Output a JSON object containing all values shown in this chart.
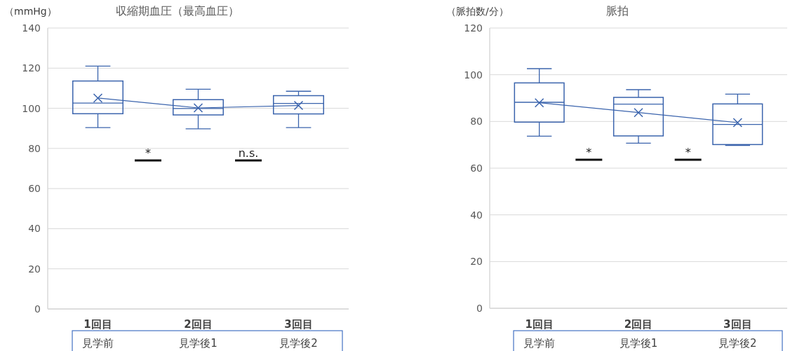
{
  "chart_data": [
    {
      "type": "box",
      "title": "収縮期血圧（最高血圧）",
      "ylabel": "（mmHg）",
      "categories": [
        "1回目",
        "2回目",
        "3回目"
      ],
      "ylim": [
        0,
        140
      ],
      "yticks": [
        0,
        20,
        40,
        60,
        80,
        100,
        120,
        140
      ],
      "grid": "y",
      "series": [
        {
          "color": "#3b64ad",
          "boxes": [
            {
              "low": 90.4,
              "q1": 97.3,
              "median": 102.6,
              "q3": 113.6,
              "high": 121
            },
            {
              "low": 89.8,
              "q1": 96.7,
              "median": 99.9,
              "q3": 104.3,
              "high": 109.5
            },
            {
              "low": 90.4,
              "q1": 97.2,
              "median": 102.4,
              "q3": 106.3,
              "high": 108.5
            }
          ]
        },
        {
          "type": "line",
          "color": "#3b64ad",
          "marker": "cross",
          "values": [
            105.1,
            100.2,
            101.4
          ]
        }
      ],
      "annotations": [
        "*",
        "n.s.",
        "見学前",
        "見学後1",
        "見学後2"
      ]
    },
    {
      "type": "box",
      "title": "脈拍",
      "ylabel": "（脈拍数/分）",
      "categories": [
        "1回目",
        "2回目",
        "3回目"
      ],
      "ylim": [
        0,
        120
      ],
      "yticks": [
        0,
        20,
        40,
        60,
        80,
        100,
        120
      ],
      "grid": "y",
      "series": [
        {
          "color": "#3b64ad",
          "boxes": [
            {
              "low": 73.7,
              "q1": 79.7,
              "median": 88.2,
              "q3": 96.5,
              "high": 102.6
            },
            {
              "low": 70.7,
              "q1": 73.8,
              "median": 87.4,
              "q3": 90.3,
              "high": 93.6
            },
            {
              "low": 69.7,
              "q1": 70.1,
              "median": 78.7,
              "q3": 87.5,
              "high": 91.7
            }
          ]
        },
        {
          "type": "line",
          "color": "#3b64ad",
          "marker": "cross",
          "values": [
            88.0,
            83.8,
            79.5
          ]
        }
      ],
      "annotations": [
        "*",
        "*",
        "見学前",
        "見学後1",
        "見学後2"
      ]
    }
  ]
}
